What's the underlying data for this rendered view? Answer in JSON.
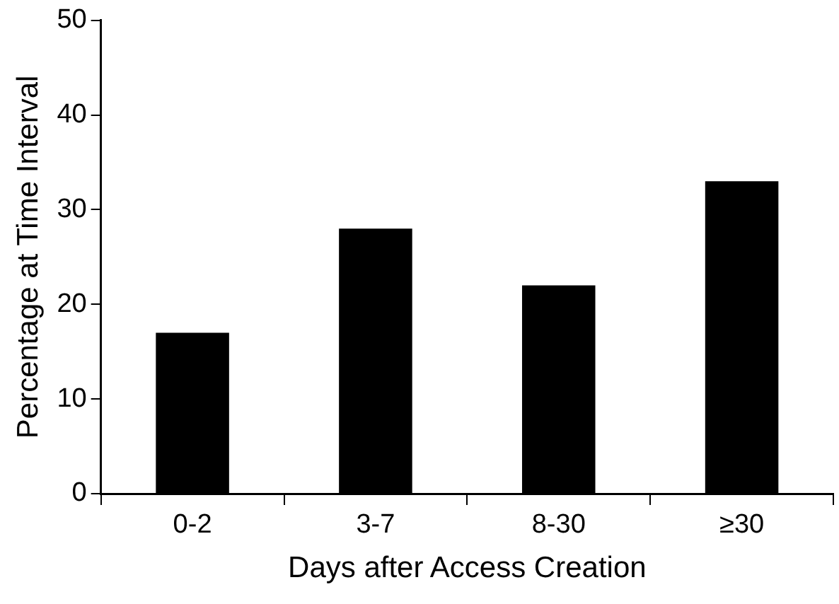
{
  "chart_data": {
    "type": "bar",
    "xlabel": "Days after Access Creation",
    "ylabel": "Percentage at Time Interval",
    "categories": [
      "0-2",
      "3-7",
      "8-30",
      "≥30"
    ],
    "values": [
      17,
      28,
      22,
      33
    ],
    "color": "#000000",
    "ylim": [
      0,
      50
    ],
    "yticks": [
      0,
      10,
      20,
      30,
      40,
      50
    ],
    "grid": false,
    "legend": false
  }
}
